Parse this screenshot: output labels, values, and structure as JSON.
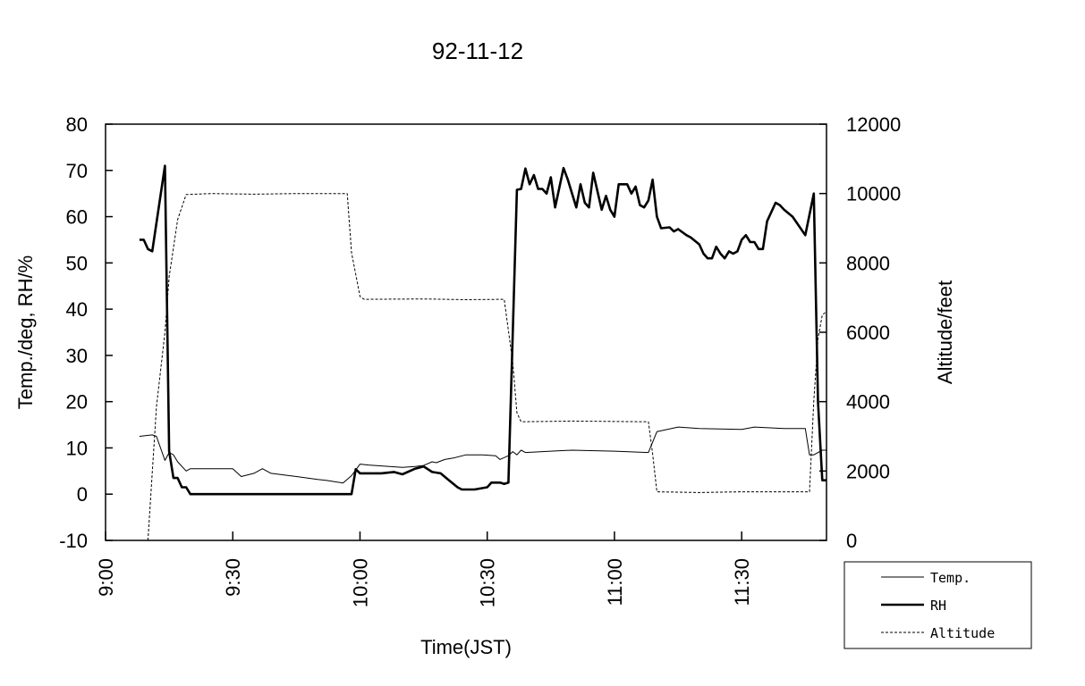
{
  "chart_data": {
    "type": "line",
    "title": "92-11-12",
    "xlabel": "Time(JST)",
    "ylabel": "Temp./deg, RH/%",
    "y2label": "Altitude/feet",
    "xlim": [
      "9:00",
      "11:50"
    ],
    "ylim": [
      -10,
      80
    ],
    "y2lim": [
      0,
      12000
    ],
    "x_ticks": [
      "9:00",
      "9:30",
      "10:00",
      "10:30",
      "11:00",
      "11:30"
    ],
    "y_ticks": [
      "-10",
      "0",
      "10",
      "20",
      "30",
      "40",
      "50",
      "60",
      "70",
      "80"
    ],
    "y2_ticks": [
      "0",
      "2000",
      "4000",
      "6000",
      "8000",
      "10000",
      "12000"
    ],
    "grid": false,
    "legend_position": "bottom-right outside",
    "series": [
      {
        "name": "Temp.",
        "axis": "left",
        "style": "thin",
        "points": [
          [
            "9:08",
            12.5
          ],
          [
            "9:11",
            12.8
          ],
          [
            "9:12",
            12.5
          ],
          [
            "9:14",
            7.3
          ],
          [
            "9:15",
            9
          ],
          [
            "9:16",
            8.5
          ],
          [
            "9:17",
            7
          ],
          [
            "9:19",
            5
          ],
          [
            "9:20",
            5.5
          ],
          [
            "9:25",
            5.5
          ],
          [
            "9:30",
            5.5
          ],
          [
            "9:32",
            3.8
          ],
          [
            "9:35",
            4.5
          ],
          [
            "9:37",
            5.5
          ],
          [
            "9:39",
            4.5
          ],
          [
            "9:45",
            3.8
          ],
          [
            "9:50",
            3.2
          ],
          [
            "9:52",
            3
          ],
          [
            "9:56",
            2.4
          ],
          [
            "9:58",
            4
          ],
          [
            "10:00",
            6.5
          ],
          [
            "10:02",
            6.3
          ],
          [
            "10:10",
            5.8
          ],
          [
            "10:13",
            6
          ],
          [
            "10:15",
            6.2
          ],
          [
            "10:17",
            7
          ],
          [
            "10:18",
            6.8
          ],
          [
            "10:20",
            7.5
          ],
          [
            "10:22",
            7.8
          ],
          [
            "10:25",
            8.5
          ],
          [
            "10:29",
            8.5
          ],
          [
            "10:32",
            8.3
          ],
          [
            "10:33",
            7.5
          ],
          [
            "10:35",
            8.3
          ],
          [
            "10:36",
            9.2
          ],
          [
            "10:37",
            8.5
          ],
          [
            "10:38",
            9.5
          ],
          [
            "10:39",
            9
          ],
          [
            "10:45",
            9.3
          ],
          [
            "10:50",
            9.5
          ],
          [
            "11:00",
            9.3
          ],
          [
            "11:08",
            9
          ],
          [
            "11:10",
            13.5
          ],
          [
            "11:15",
            14.5
          ],
          [
            "11:20",
            14.2
          ],
          [
            "11:30",
            14
          ],
          [
            "11:33",
            14.5
          ],
          [
            "11:40",
            14.2
          ],
          [
            "11:45",
            14.2
          ],
          [
            "11:46",
            8.5
          ],
          [
            "11:47",
            8.5
          ],
          [
            "11:49",
            9.5
          ],
          [
            "11:50",
            9.5
          ]
        ]
      },
      {
        "name": "RH",
        "axis": "left",
        "style": "thick",
        "points": [
          [
            "9:08",
            55
          ],
          [
            "9:09",
            55
          ],
          [
            "9:10",
            53
          ],
          [
            "9:11",
            52.5
          ],
          [
            "9:14",
            71
          ],
          [
            "9:15",
            9.3
          ],
          [
            "9:16",
            3.5
          ],
          [
            "9:17",
            3.5
          ],
          [
            "9:18",
            1.5
          ],
          [
            "9:19",
            1.5
          ],
          [
            "9:20",
            0
          ],
          [
            "9:58",
            0
          ],
          [
            "9:59",
            5.4
          ],
          [
            "10:00",
            4.5
          ],
          [
            "10:05",
            4.5
          ],
          [
            "10:08",
            4.8
          ],
          [
            "10:10",
            4.3
          ],
          [
            "10:13",
            5.5
          ],
          [
            "10:15",
            6
          ],
          [
            "10:17",
            4.8
          ],
          [
            "10:19",
            4.5
          ],
          [
            "10:21",
            3
          ],
          [
            "10:23",
            1.5
          ],
          [
            "10:24",
            1
          ],
          [
            "10:27",
            1
          ],
          [
            "10:30",
            1.5
          ],
          [
            "10:31",
            2.5
          ],
          [
            "10:33",
            2.5
          ],
          [
            "10:34",
            2.2
          ],
          [
            "10:35",
            2.5
          ],
          [
            "10:37",
            65.8
          ],
          [
            "10:38",
            66
          ],
          [
            "10:39",
            70.4
          ],
          [
            "10:40",
            67
          ],
          [
            "10:41",
            69
          ],
          [
            "10:42",
            66
          ],
          [
            "10:43",
            66
          ],
          [
            "10:44",
            65
          ],
          [
            "10:45",
            68.5
          ],
          [
            "10:46",
            62
          ],
          [
            "10:48",
            70.5
          ],
          [
            "10:49",
            68
          ],
          [
            "10:51",
            62
          ],
          [
            "10:52",
            67
          ],
          [
            "10:53",
            63
          ],
          [
            "10:54",
            62
          ],
          [
            "10:55",
            69.5
          ],
          [
            "10:57",
            61.5
          ],
          [
            "10:58",
            64.5
          ],
          [
            "10:59",
            61.5
          ],
          [
            "11:00",
            60
          ],
          [
            "11:01",
            67
          ],
          [
            "11:03",
            67
          ],
          [
            "11:04",
            65
          ],
          [
            "11:05",
            66.5
          ],
          [
            "11:06",
            62.5
          ],
          [
            "11:07",
            62
          ],
          [
            "11:08",
            63.5
          ],
          [
            "11:09",
            68
          ],
          [
            "11:10",
            60
          ],
          [
            "11:11",
            57.5
          ],
          [
            "11:13",
            57.7
          ],
          [
            "11:14",
            56.8
          ],
          [
            "11:15",
            57.3
          ],
          [
            "11:17",
            56
          ],
          [
            "11:18",
            55.5
          ],
          [
            "11:20",
            54
          ],
          [
            "11:21",
            52
          ],
          [
            "11:22",
            51
          ],
          [
            "11:23",
            51
          ],
          [
            "11:24",
            53.5
          ],
          [
            "11:25",
            52
          ],
          [
            "11:26",
            51
          ],
          [
            "11:27",
            52.5
          ],
          [
            "11:28",
            52
          ],
          [
            "11:29",
            52.5
          ],
          [
            "11:30",
            55
          ],
          [
            "11:31",
            56
          ],
          [
            "11:32",
            54.5
          ],
          [
            "11:33",
            54.5
          ],
          [
            "11:34",
            53
          ],
          [
            "11:35",
            53
          ],
          [
            "11:36",
            59
          ],
          [
            "11:38",
            63
          ],
          [
            "11:39",
            62.5
          ],
          [
            "11:40",
            61.5
          ],
          [
            "11:42",
            60
          ],
          [
            "11:45",
            56
          ],
          [
            "11:47",
            65
          ],
          [
            "11:48",
            20
          ],
          [
            "11:49",
            3
          ],
          [
            "11:50",
            3
          ]
        ]
      },
      {
        "name": "Altitude",
        "axis": "right",
        "style": "dashed",
        "points": [
          [
            "9:10",
            0
          ],
          [
            "9:12",
            3850
          ],
          [
            "9:14",
            6000
          ],
          [
            "9:15",
            7600
          ],
          [
            "9:17",
            9250
          ],
          [
            "9:19",
            9970
          ],
          [
            "9:25",
            10000
          ],
          [
            "9:35",
            9980
          ],
          [
            "9:45",
            10000
          ],
          [
            "9:57",
            10000
          ],
          [
            "9:58",
            8300
          ],
          [
            "10:00",
            7030
          ],
          [
            "10:01",
            6950
          ],
          [
            "10:15",
            6960
          ],
          [
            "10:25",
            6940
          ],
          [
            "10:34",
            6950
          ],
          [
            "10:36",
            5130
          ],
          [
            "10:37",
            3680
          ],
          [
            "10:38",
            3420
          ],
          [
            "10:50",
            3440
          ],
          [
            "11:08",
            3420
          ],
          [
            "11:09",
            2500
          ],
          [
            "11:10",
            1400
          ],
          [
            "11:20",
            1380
          ],
          [
            "11:30",
            1400
          ],
          [
            "11:46",
            1400
          ],
          [
            "11:47",
            4020
          ],
          [
            "11:48",
            5820
          ],
          [
            "11:49",
            6500
          ],
          [
            "11:50",
            6600
          ]
        ]
      }
    ]
  }
}
